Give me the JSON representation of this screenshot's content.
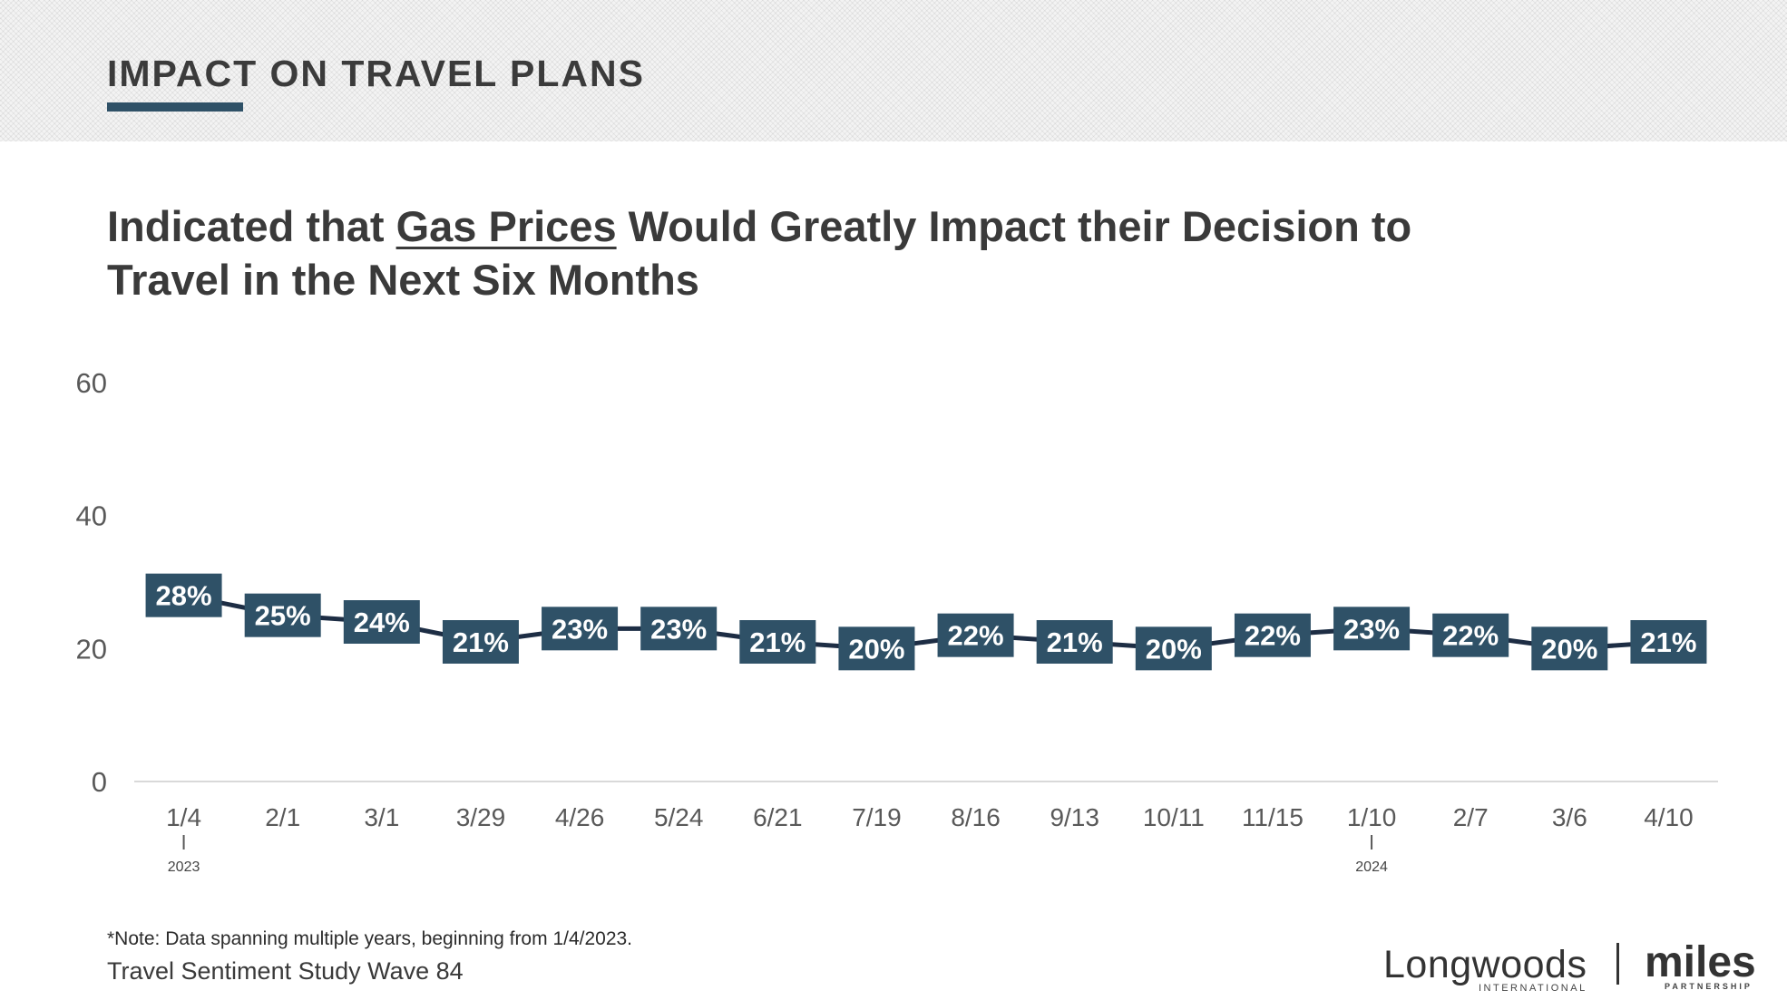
{
  "header": {
    "section_title": "IMPACT ON TRAVEL PLANS"
  },
  "chart_title": {
    "before": "Indicated that ",
    "emphasis": "Gas Prices",
    "after": " Would Greatly Impact their Decision to Travel in the Next Six Months"
  },
  "chart_data": {
    "type": "line",
    "categories": [
      "1/4",
      "2/1",
      "3/1",
      "3/29",
      "4/26",
      "5/24",
      "6/21",
      "7/19",
      "8/16",
      "9/13",
      "10/11",
      "11/15",
      "1/10",
      "2/7",
      "3/6",
      "4/10"
    ],
    "values": [
      28,
      25,
      24,
      21,
      23,
      23,
      21,
      20,
      22,
      21,
      20,
      22,
      23,
      22,
      20,
      21
    ],
    "data_labels": [
      "28%",
      "25%",
      "24%",
      "21%",
      "23%",
      "23%",
      "21%",
      "20%",
      "22%",
      "21%",
      "20%",
      "22%",
      "23%",
      "22%",
      "20%",
      "21%"
    ],
    "year_markers": [
      {
        "category": "1/4",
        "label": "2023"
      },
      {
        "category": "1/10",
        "label": "2024"
      }
    ],
    "y_ticks": [
      0,
      20,
      40,
      60
    ],
    "ylim": [
      0,
      60
    ],
    "title": "",
    "xlabel": "",
    "ylabel": "",
    "grid": false,
    "colors": {
      "line": "#1d2d44",
      "label_box": "#2f5167",
      "label_text": "#ffffff",
      "axis_text": "#595959"
    }
  },
  "footer": {
    "note": "*Note: Data spanning multiple years, beginning from 1/4/2023.",
    "study": "Travel Sentiment Study Wave 84"
  },
  "logos": {
    "longwoods": "Longwoods",
    "longwoods_sub": "INTERNATIONAL",
    "miles": "miles",
    "miles_sub": "PARTNERSHIP"
  }
}
